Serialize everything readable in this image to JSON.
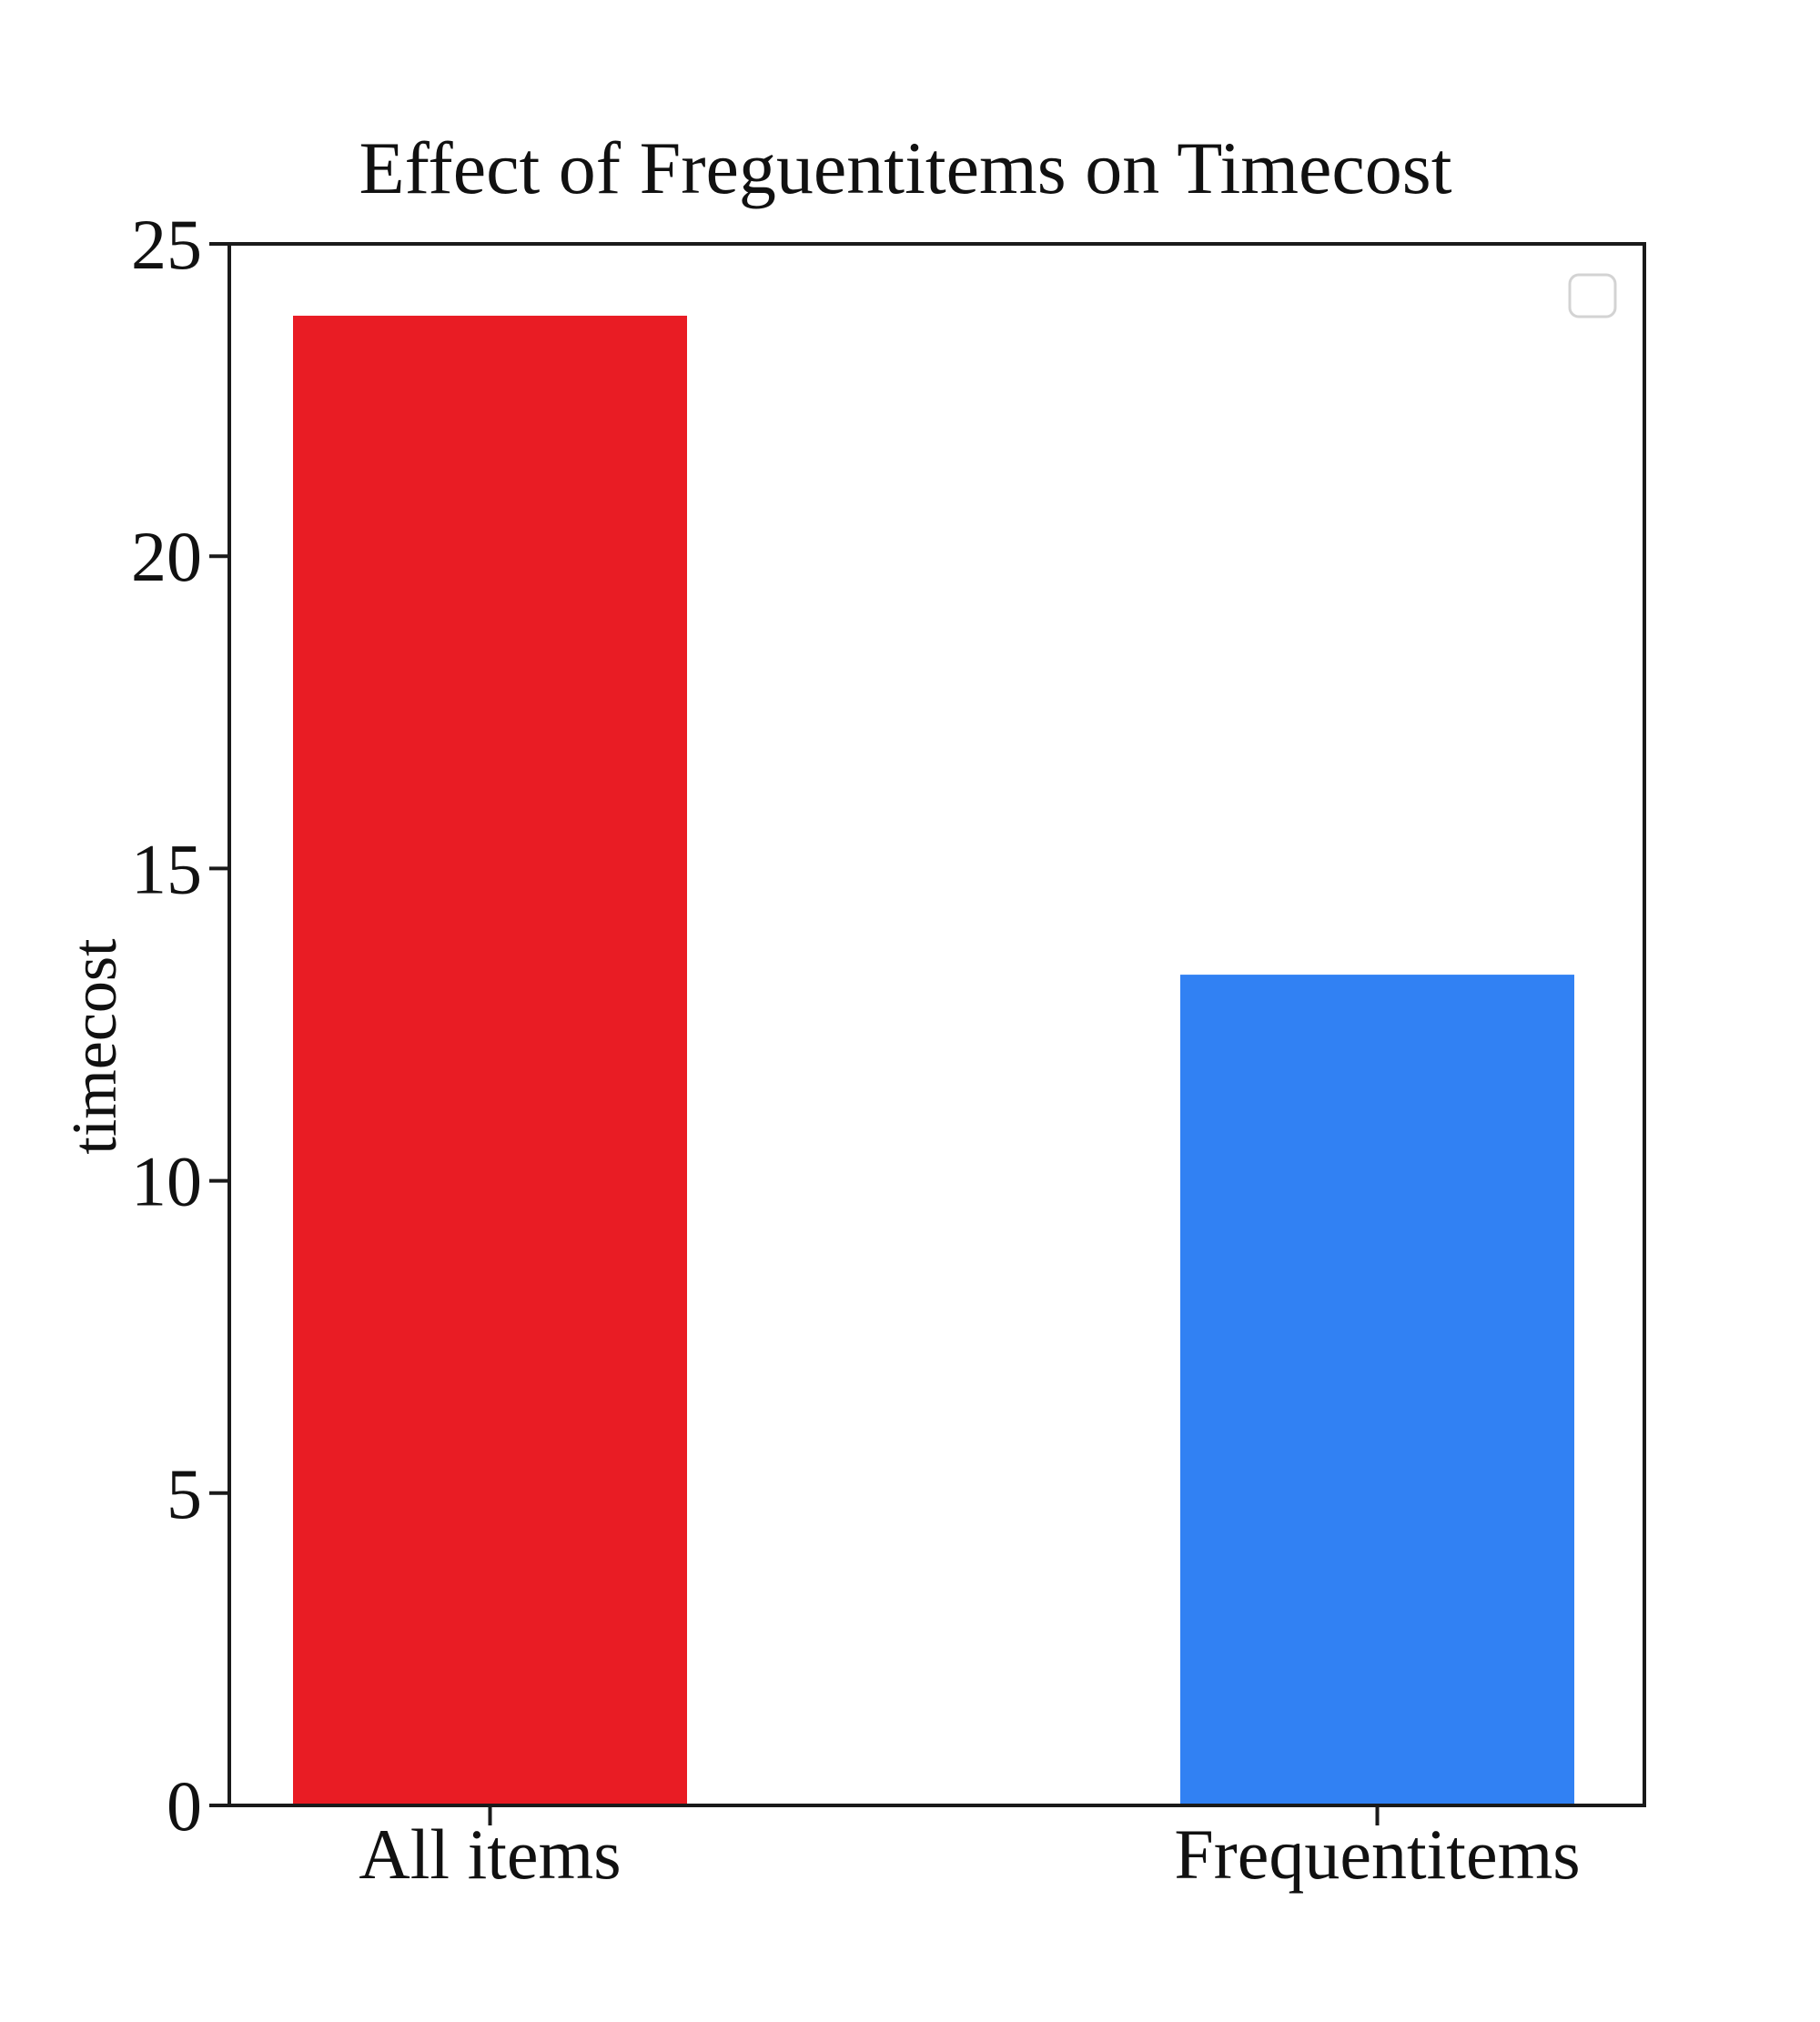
{
  "chart_data": {
    "type": "bar",
    "title": "Effect of Freguentitems on Timecost",
    "xlabel": "",
    "ylabel": "timecost",
    "categories": [
      "All items",
      "Frequentitems"
    ],
    "values": [
      23.85,
      13.3
    ],
    "colors": [
      "#e91c24",
      "#3181f3"
    ],
    "ylim": [
      0,
      25
    ],
    "yticks": [
      "0",
      "5",
      "10",
      "15",
      "20",
      "25"
    ],
    "grid": false,
    "legend": {
      "entries": [],
      "placement": "top-right"
    }
  }
}
